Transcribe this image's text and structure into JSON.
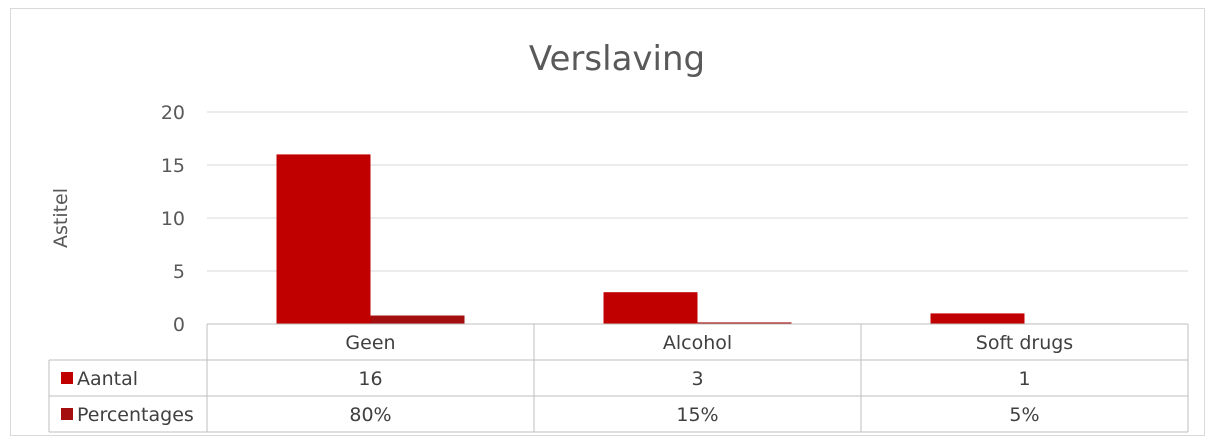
{
  "chart_data": {
    "type": "bar",
    "title": "Verslaving",
    "ylabel": "Astitel",
    "xlabel": "",
    "categories": [
      "Geen",
      "Alcohol",
      "Soft drugs"
    ],
    "series": [
      {
        "name": "Aantal",
        "values": [
          16,
          3,
          1
        ],
        "color": "#c00000",
        "labels": [
          "16",
          "3",
          "1"
        ]
      },
      {
        "name": "Percentages",
        "values": [
          0.8,
          0.15,
          0.05
        ],
        "color": "#a50e0e",
        "labels": [
          "80%",
          "15%",
          "5%"
        ]
      }
    ],
    "ylim": [
      0,
      20
    ],
    "yticks": [
      "0",
      "5",
      "10",
      "15",
      "20"
    ],
    "grid": true,
    "legend": "data-table"
  }
}
